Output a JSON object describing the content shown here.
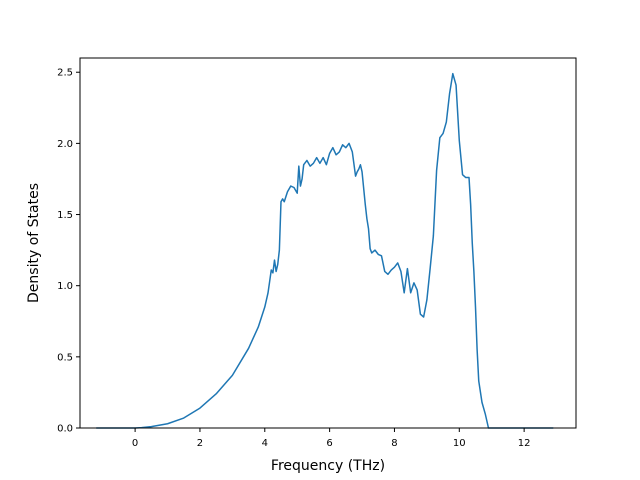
{
  "chart_data": {
    "type": "line",
    "title": "",
    "xlabel": "Frequency (THz)",
    "ylabel": "Density of States",
    "xlim": [
      -1.7,
      13.6
    ],
    "ylim": [
      0.0,
      2.6
    ],
    "x_ticks": [
      0,
      2,
      4,
      6,
      8,
      10,
      12
    ],
    "y_ticks": [
      0.0,
      0.5,
      1.0,
      1.5,
      2.0,
      2.5
    ],
    "x_tick_labels": [
      "0",
      "2",
      "4",
      "6",
      "8",
      "10",
      "12"
    ],
    "y_tick_labels": [
      "0.0",
      "0.5",
      "1.0",
      "1.5",
      "2.0",
      "2.5"
    ],
    "grid": false,
    "line_color": "#1f77b4",
    "series": [
      {
        "x": [
          -1.2,
          -0.5,
          0.0,
          0.2,
          0.5,
          1.0,
          1.5,
          2.0,
          2.5,
          3.0,
          3.5,
          3.8,
          4.0,
          4.1,
          4.15,
          4.2,
          4.25,
          4.3,
          4.35,
          4.4,
          4.45,
          4.5,
          4.55,
          4.6,
          4.7,
          4.8,
          4.9,
          5.0,
          5.05,
          5.1,
          5.15,
          5.2,
          5.3,
          5.4,
          5.5,
          5.6,
          5.7,
          5.8,
          5.9,
          6.0,
          6.1,
          6.2,
          6.3,
          6.4,
          6.5,
          6.6,
          6.7,
          6.8,
          6.85,
          6.9,
          6.95,
          7.0,
          7.1,
          7.15,
          7.2,
          7.25,
          7.3,
          7.4,
          7.5,
          7.6,
          7.7,
          7.8,
          7.9,
          8.0,
          8.1,
          8.2,
          8.3,
          8.4,
          8.5,
          8.6,
          8.7,
          8.8,
          8.9,
          9.0,
          9.1,
          9.2,
          9.3,
          9.4,
          9.5,
          9.6,
          9.7,
          9.8,
          9.9,
          10.0,
          10.1,
          10.2,
          10.3,
          10.35,
          10.4,
          10.45,
          10.5,
          10.55,
          10.6,
          10.7,
          10.8,
          10.9,
          11.0,
          11.1,
          11.2,
          11.3,
          11.4,
          11.5,
          11.6,
          11.7,
          11.8,
          12.0,
          12.5,
          12.9
        ],
        "y": [
          0.0,
          0.0,
          0.0,
          0.003,
          0.01,
          0.03,
          0.07,
          0.14,
          0.24,
          0.37,
          0.56,
          0.71,
          0.85,
          0.95,
          1.03,
          1.11,
          1.09,
          1.18,
          1.1,
          1.15,
          1.25,
          1.59,
          1.61,
          1.59,
          1.66,
          1.7,
          1.69,
          1.65,
          1.84,
          1.7,
          1.75,
          1.85,
          1.88,
          1.84,
          1.86,
          1.9,
          1.86,
          1.9,
          1.85,
          1.93,
          1.97,
          1.92,
          1.94,
          1.99,
          1.97,
          2.0,
          1.94,
          1.77,
          1.8,
          1.82,
          1.85,
          1.8,
          1.57,
          1.47,
          1.4,
          1.26,
          1.23,
          1.25,
          1.22,
          1.21,
          1.1,
          1.08,
          1.11,
          1.13,
          1.16,
          1.1,
          0.95,
          1.12,
          0.95,
          1.02,
          0.97,
          0.8,
          0.78,
          0.9,
          1.12,
          1.35,
          1.81,
          2.04,
          2.07,
          2.15,
          2.35,
          2.49,
          2.41,
          2.02,
          1.78,
          1.76,
          1.76,
          1.57,
          1.3,
          1.1,
          0.85,
          0.55,
          0.33,
          0.18,
          0.1,
          0.0,
          0.0,
          0.0,
          0.0,
          0.0,
          0.0,
          0.0,
          0.0,
          0.0,
          0.0,
          0.0,
          0.0,
          0.0
        ]
      }
    ]
  }
}
